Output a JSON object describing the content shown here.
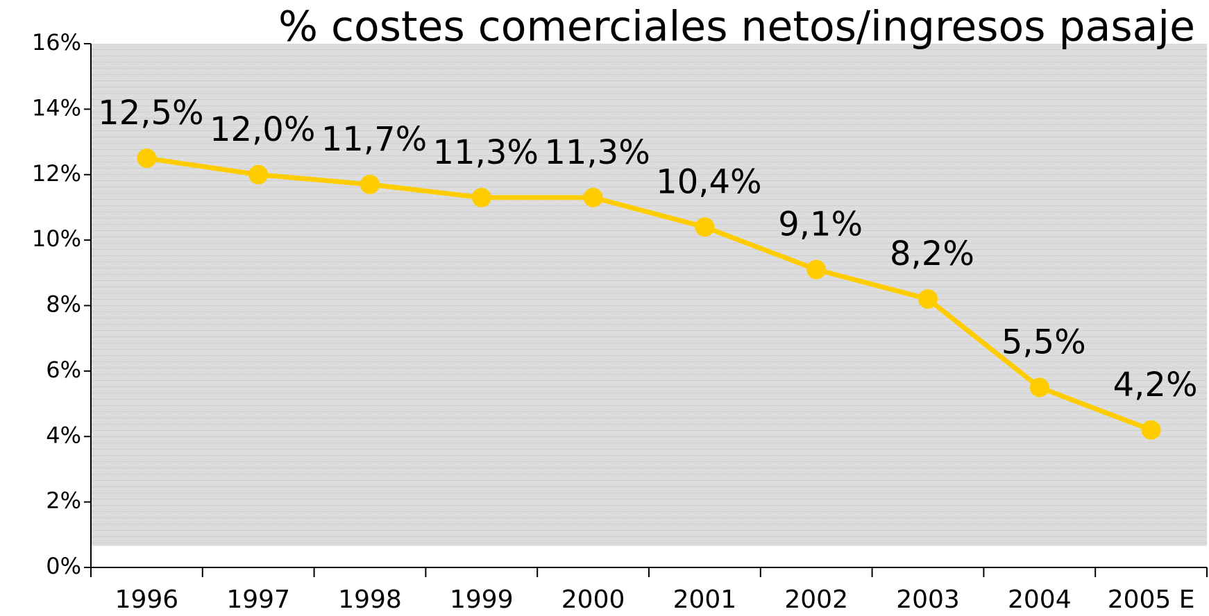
{
  "chart_data": {
    "type": "line",
    "title": "% costes comerciales netos/ingresos pasaje",
    "categories": [
      "1996",
      "1997",
      "1998",
      "1999",
      "2000",
      "2001",
      "2002",
      "2003",
      "2004",
      "2005 E"
    ],
    "series": [
      {
        "name": "% costes comerciales netos/ingresos pasaje",
        "color": "#ffcc00",
        "values": [
          12.5,
          12.0,
          11.7,
          11.3,
          11.3,
          10.4,
          9.1,
          8.2,
          5.5,
          4.2
        ],
        "value_labels": [
          "12,5%",
          "12,0%",
          "11,7%",
          "11,3%",
          "11,3%",
          "10,4%",
          "9,1%",
          "8,2%",
          "5,5%",
          "4,2%"
        ]
      }
    ],
    "ylim": [
      0,
      16
    ],
    "yticks": [
      {
        "value": 0,
        "label": "0%"
      },
      {
        "value": 2,
        "label": "2%"
      },
      {
        "value": 4,
        "label": "4%"
      },
      {
        "value": 6,
        "label": "6%"
      },
      {
        "value": 8,
        "label": "8%"
      },
      {
        "value": 10,
        "label": "10%"
      },
      {
        "value": 12,
        "label": "12%"
      },
      {
        "value": 14,
        "label": "14%"
      },
      {
        "value": 16,
        "label": "16%"
      }
    ]
  }
}
